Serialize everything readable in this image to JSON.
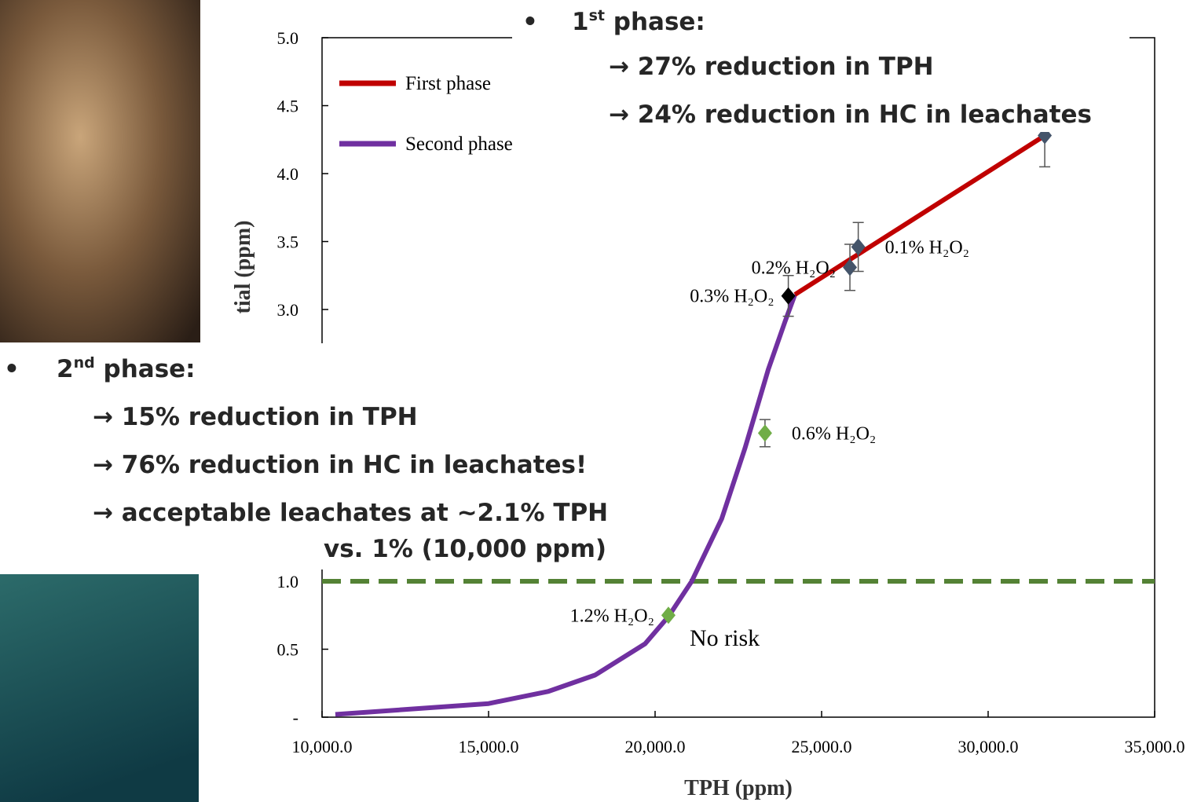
{
  "chart_data": {
    "type": "line",
    "y_label": "tial (ppm)",
    "x_label": "TPH (ppm)",
    "xlim": [
      10000,
      35000
    ],
    "xticks": [
      {
        "value": 10000,
        "label": "10,000.0"
      },
      {
        "value": 15000,
        "label": "15,000.0"
      },
      {
        "value": 20000,
        "label": "20,000.0"
      },
      {
        "value": 25000,
        "label": "25,000.0"
      },
      {
        "value": 30000,
        "label": "30,000.0"
      },
      {
        "value": 35000,
        "label": "35,000.0"
      }
    ],
    "ylim": [
      0,
      5
    ],
    "yticks": [
      {
        "value": 0,
        "label": "-"
      },
      0.5,
      {
        "value": 1,
        "label": "1.0"
      },
      {
        "value": 3,
        "label": "3.0"
      },
      3.5,
      {
        "value": 4,
        "label": "4.0"
      },
      4.5,
      {
        "value": 5,
        "label": "5.0"
      }
    ],
    "legend_position": "upper left",
    "series": [
      {
        "name": "First phase",
        "color": "#c00000",
        "x": [
          24200,
          31700
        ],
        "values": [
          3.11,
          4.28
        ]
      },
      {
        "name": "Second phase",
        "color": "#7030a0",
        "x": [
          10400,
          15000,
          16800,
          18200,
          19700,
          20400,
          21100,
          22000,
          22700,
          23400,
          23900,
          24200
        ],
        "values": [
          0.02,
          0.1,
          0.19,
          0.31,
          0.54,
          0.74,
          1.0,
          1.46,
          1.98,
          2.56,
          2.91,
          3.11
        ]
      }
    ],
    "points": [
      {
        "label": "1.2% H₂O₂",
        "x": 20400,
        "y": 0.75,
        "err": 0,
        "color": "#70ad47",
        "side": "left"
      },
      {
        "label": "0.6% H₂O₂",
        "x": 23300,
        "y": 2.09,
        "err": 0.1,
        "color": "#70ad47",
        "side": "right"
      },
      {
        "label": "0.3% H₂O₂",
        "x": 24000,
        "y": 3.1,
        "err": 0.15,
        "color": "#000000",
        "side": "left"
      },
      {
        "label": "0.2% H₂O₂",
        "x": 25850,
        "y": 3.31,
        "err": 0.17,
        "color": "#44546a",
        "side": "left"
      },
      {
        "label": "0.1% H₂O₂",
        "x": 26100,
        "y": 3.46,
        "err": 0.18,
        "color": "#44546a",
        "side": "right"
      },
      {
        "x": 31700,
        "y": 4.28,
        "err": 0.23,
        "color": "#44546a"
      }
    ],
    "threshold": {
      "value": 1,
      "color": "#548235"
    },
    "annotation": "No risk"
  },
  "bullets": [
    {
      "num": "1",
      "sup": "st",
      "text": " phase:",
      "items": [
        "→ 27% reduction in TPH",
        "→ 24% reduction in HC in leachates"
      ]
    },
    {
      "num": "2",
      "sup": "nd",
      "text": " phase:",
      "items": [
        "→ 15% reduction in TPH",
        "→ 76% reduction in HC in leachates!",
        "→ acceptable leachates at ~2.1% TPH",
        "vs. 1% (10,000 ppm)"
      ]
    }
  ]
}
